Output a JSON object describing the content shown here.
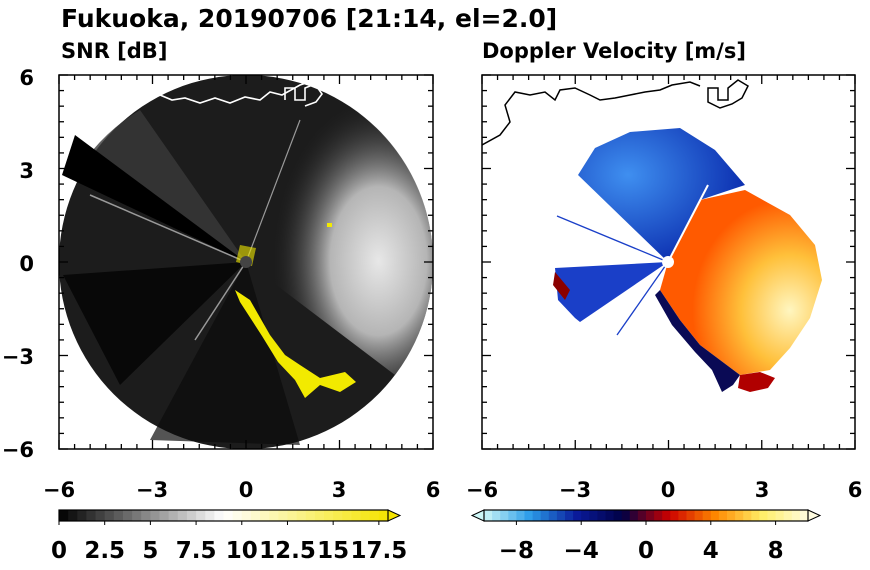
{
  "figure": {
    "title": "Fukuoka, 20190706 [21:14, el=2.0]"
  },
  "chart_data": [
    {
      "type": "heatmap",
      "title": "SNR [dB]",
      "xlabel": "",
      "ylabel": "",
      "xlim": [
        -6,
        6
      ],
      "ylim": [
        -6,
        6
      ],
      "x_ticks": [
        "−6",
        "−3",
        "0",
        "3",
        "6"
      ],
      "y_ticks": [
        "6",
        "3",
        "0",
        "−3",
        "−6"
      ],
      "colorbar": {
        "ticks": [
          "0",
          "2.5",
          "5",
          "7.5",
          "10",
          "12.5",
          "15",
          "17.5"
        ],
        "range": [
          0,
          18
        ],
        "steps": 36,
        "extend": "max",
        "colors": [
          "#000000",
          "#ffffff",
          "#f5e400"
        ]
      },
      "colors": {
        "background_disc": "#1c1c1c",
        "echo_bright": "#e8e8e8",
        "clutter": "#f2ea00",
        "coastline": "#ffffff"
      }
    },
    {
      "type": "heatmap",
      "title": "Doppler Velocity [m/s]",
      "xlabel": "",
      "ylabel": "",
      "xlim": [
        -6,
        6
      ],
      "ylim": [
        -6,
        6
      ],
      "x_ticks": [
        "−6",
        "−3",
        "0",
        "3",
        "6"
      ],
      "y_ticks": [],
      "colorbar": {
        "ticks": [
          "−8",
          "−4",
          "0",
          "4",
          "8"
        ],
        "range": [
          -10,
          10
        ],
        "steps": 40,
        "extend": "both",
        "colors": [
          "#cdf7f7",
          "#2a9be8",
          "#0a1a9a",
          "#000044",
          "#cc0000",
          "#ff8800",
          "#ffee66",
          "#fffce0"
        ]
      },
      "colors": {
        "approaching": "#1f5ed8",
        "receding": "#ff9a10",
        "coastline": "#000000"
      }
    }
  ]
}
